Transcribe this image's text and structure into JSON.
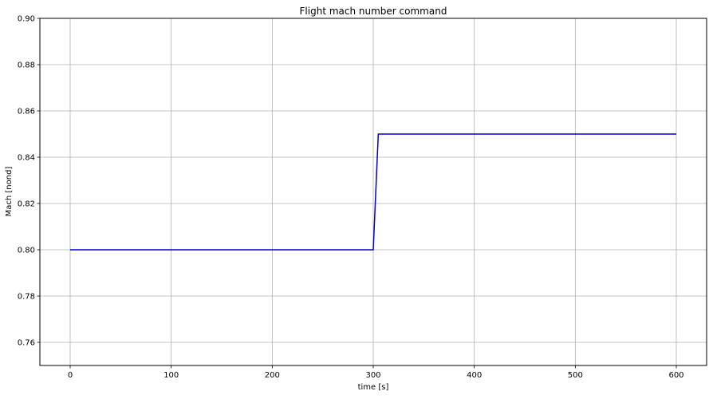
{
  "chart_data": {
    "type": "line",
    "title": "Flight mach number command",
    "xlabel": "time [s]",
    "ylabel": "Mach [nond]",
    "xlim": [
      -30,
      630
    ],
    "ylim": [
      0.75,
      0.9
    ],
    "xticks": [
      0,
      100,
      200,
      300,
      400,
      500,
      600
    ],
    "xtick_labels": [
      "0",
      "100",
      "200",
      "300",
      "400",
      "500",
      "600"
    ],
    "yticks": [
      0.76,
      0.78,
      0.8,
      0.82,
      0.84,
      0.86,
      0.88,
      0.9
    ],
    "ytick_labels": [
      "0.76",
      "0.78",
      "0.80",
      "0.82",
      "0.84",
      "0.86",
      "0.88",
      "0.90"
    ],
    "grid": true,
    "series": [
      {
        "color": "#0000cc",
        "x": [
          0,
          300,
          305,
          600
        ],
        "y": [
          0.8,
          0.8,
          0.85,
          0.85
        ]
      }
    ]
  }
}
